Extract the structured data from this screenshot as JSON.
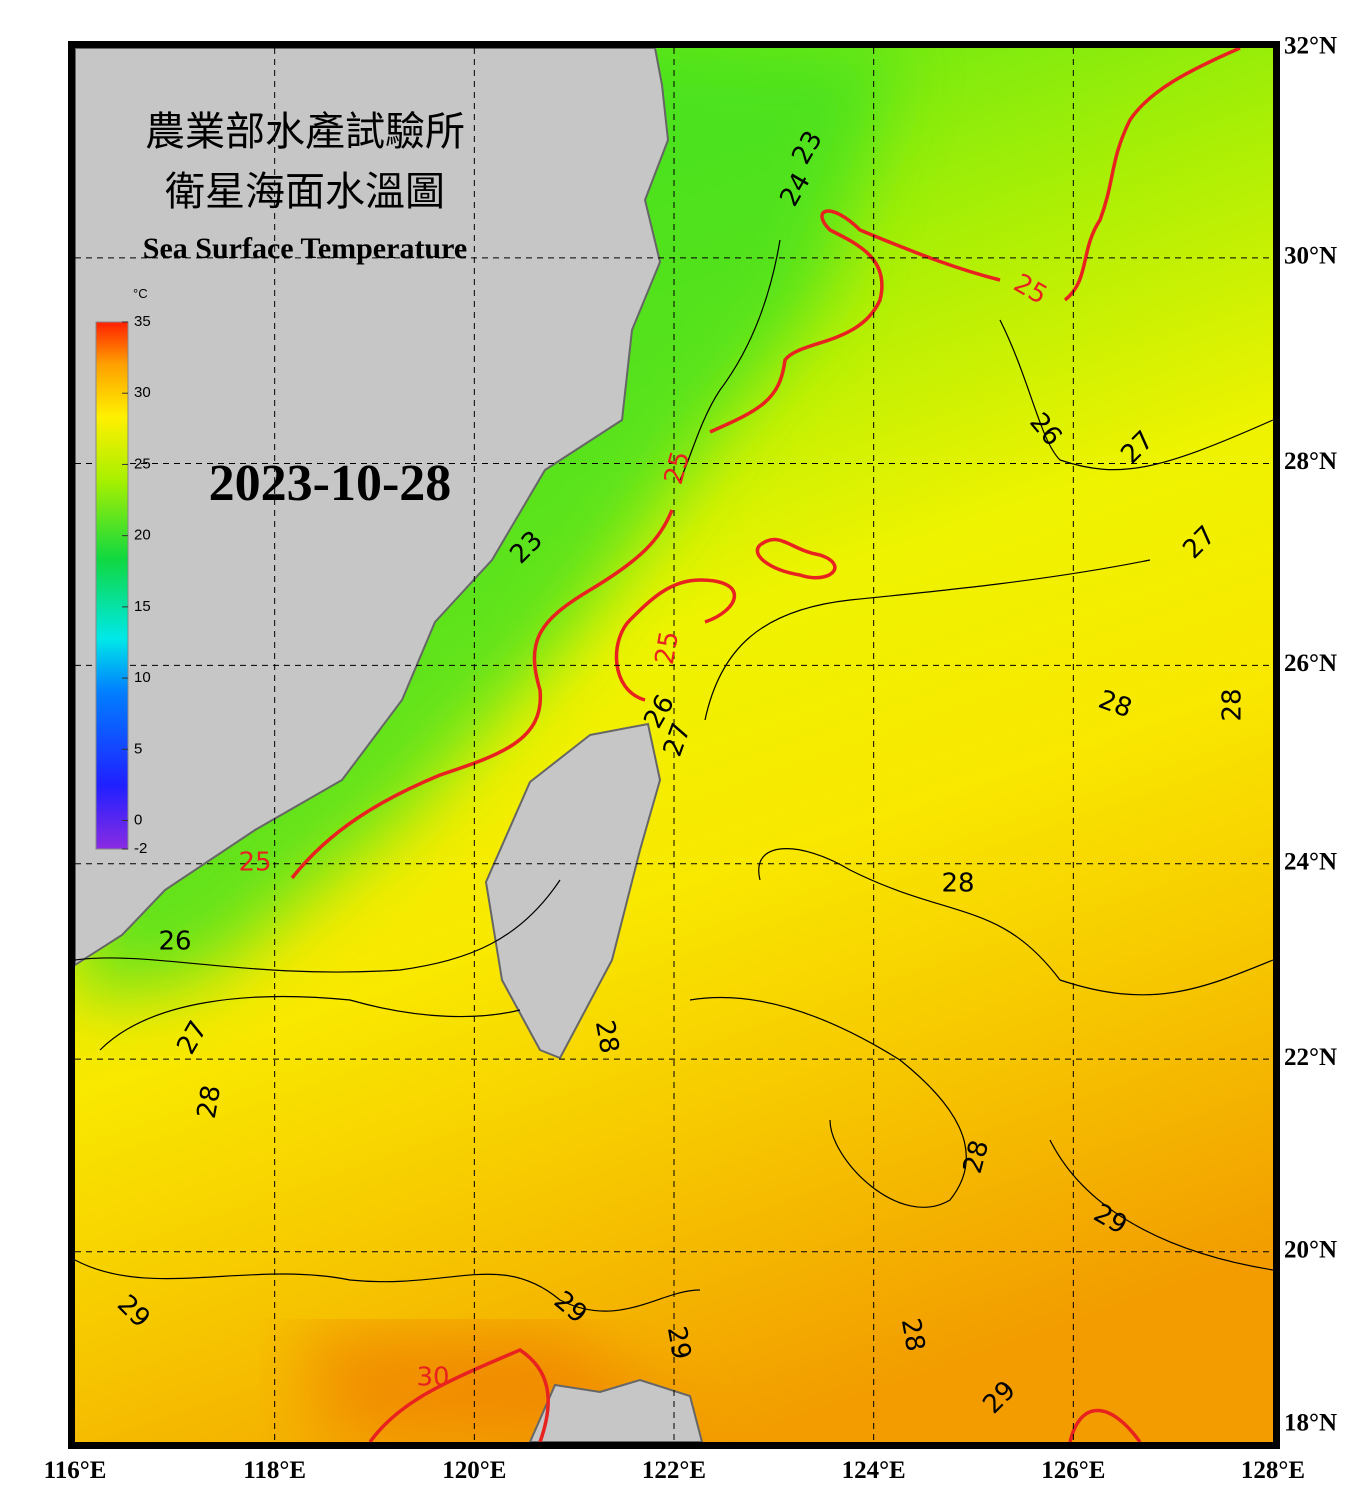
{
  "header": {
    "title_line1": "農業部水產試驗所",
    "title_line2": "衛星海面水溫圖",
    "subtitle": "Sea Surface Temperature",
    "date": "2023-10-28"
  },
  "colorbar": {
    "unit": "°C",
    "range": [
      -2,
      35
    ],
    "ticks": [
      35,
      30,
      25,
      20,
      15,
      10,
      5,
      0,
      -2
    ]
  },
  "map": {
    "lon_range": [
      116,
      128
    ],
    "lat_range": [
      18,
      32
    ],
    "lon_ticks": [
      {
        "value": 116,
        "label": "116°E"
      },
      {
        "value": 118,
        "label": "118°E"
      },
      {
        "value": 120,
        "label": "120°E"
      },
      {
        "value": 122,
        "label": "122°E"
      },
      {
        "value": 124,
        "label": "124°E"
      },
      {
        "value": 126,
        "label": "126°E"
      },
      {
        "value": 128,
        "label": "128°E"
      }
    ],
    "lat_ticks": [
      {
        "value": 32,
        "label": "32°N"
      },
      {
        "value": 30,
        "label": "30°N"
      },
      {
        "value": 28,
        "label": "28°N"
      },
      {
        "value": 26,
        "label": "26°N"
      },
      {
        "value": 24,
        "label": "24°N"
      },
      {
        "value": 22,
        "label": "22°N"
      },
      {
        "value": 20,
        "label": "20°N"
      },
      {
        "value": 18,
        "label": "18°N"
      }
    ],
    "contour_labels": [
      23,
      24,
      25,
      26,
      27,
      27,
      25,
      23,
      25,
      26,
      27,
      28,
      28,
      25,
      26,
      28,
      27,
      28,
      28,
      28,
      29,
      29,
      29,
      29,
      28,
      30,
      29
    ]
  }
}
